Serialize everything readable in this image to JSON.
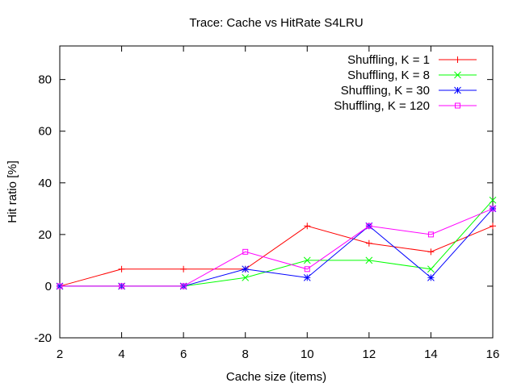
{
  "chart_data": {
    "type": "line",
    "title": "Trace: Cache vs HitRate S4LRU",
    "xlabel": "Cache size (items)",
    "ylabel": "Hit ratio [%]",
    "xlim": [
      2,
      16
    ],
    "ylim": [
      -20,
      93
    ],
    "xticks": [
      2,
      4,
      6,
      8,
      10,
      12,
      14,
      16
    ],
    "yticks": [
      -20,
      0,
      20,
      40,
      60,
      80
    ],
    "grid": false,
    "legend_position": "top-right",
    "x": [
      2,
      4,
      6,
      8,
      10,
      12,
      14,
      16
    ],
    "series": [
      {
        "name": "Shuffling, K = 1",
        "color": "#ff0000",
        "marker": "plus",
        "values": [
          0,
          6.6,
          6.6,
          6.6,
          23.3,
          16.6,
          13.3,
          23.3
        ]
      },
      {
        "name": "Shuffling, K = 8",
        "color": "#00ff00",
        "marker": "cross",
        "values": [
          0,
          0,
          0,
          3.3,
          10,
          10,
          6.6,
          33.3
        ]
      },
      {
        "name": "Shuffling, K = 30",
        "color": "#0000ff",
        "marker": "star",
        "values": [
          0,
          0,
          0,
          6.6,
          3.3,
          23.3,
          3.3,
          30
        ]
      },
      {
        "name": "Shuffling, K = 120",
        "color": "#ff00ff",
        "marker": "square",
        "values": [
          0,
          0,
          0,
          13.3,
          6.6,
          23.3,
          20,
          30
        ]
      }
    ]
  }
}
